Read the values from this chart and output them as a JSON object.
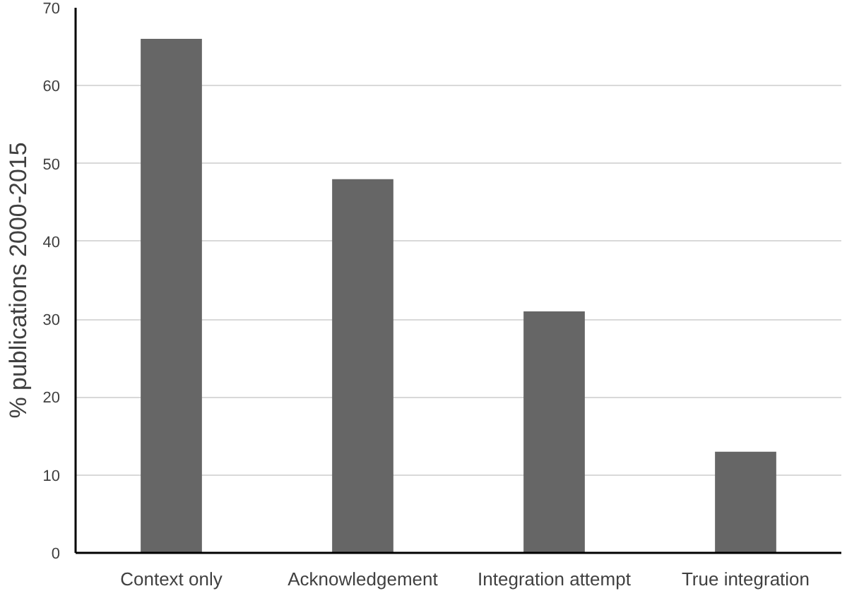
{
  "chart_data": {
    "type": "bar",
    "ylabel": "% publications 2000-2015",
    "categories": [
      "Context only",
      "Acknowledgement",
      "Integration attempt",
      "True integration"
    ],
    "values": [
      66,
      48,
      31,
      13
    ],
    "color": "#666666",
    "ylim": [
      0,
      70
    ],
    "yticks": [
      0,
      10,
      20,
      30,
      40,
      50,
      60,
      70
    ],
    "grid": "y"
  }
}
